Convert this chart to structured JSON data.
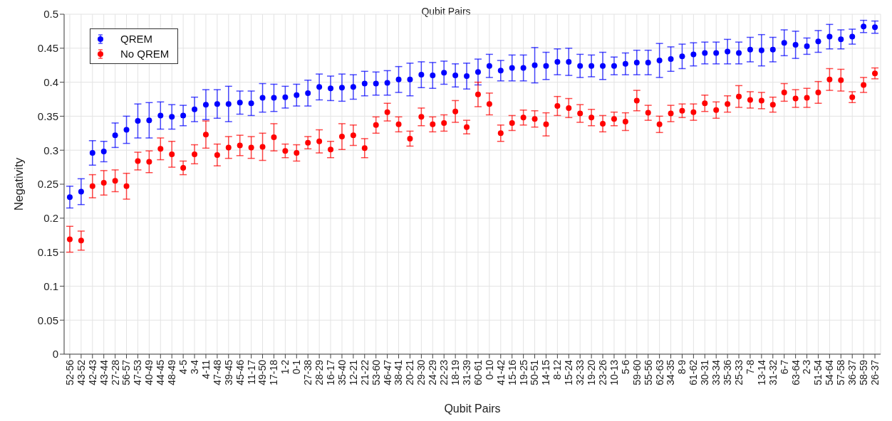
{
  "chart_data": {
    "type": "scatter",
    "title": "Qubit Pairs",
    "xlabel": "Qubit Pairs",
    "ylabel": "Negativity",
    "categories": [
      "52-56",
      "43-52",
      "42-43",
      "43-44",
      "27-28",
      "56-57",
      "47-53",
      "40-49",
      "44-45",
      "48-49",
      "4-5",
      "3-4",
      "4-11",
      "47-48",
      "39-45",
      "45-46",
      "11-17",
      "49-50",
      "17-18",
      "1-2",
      "0-1",
      "27-38",
      "28-29",
      "16-17",
      "35-40",
      "12-21",
      "21-22",
      "53-60",
      "46-47",
      "38-41",
      "20-21",
      "29-30",
      "24-29",
      "22-23",
      "18-19",
      "31-39",
      "60-61",
      "0-10",
      "41-42",
      "15-16",
      "19-25",
      "50-51",
      "14-15",
      "8-12",
      "15-24",
      "32-33",
      "19-20",
      "23-26",
      "10-13",
      "5-6",
      "59-60",
      "55-56",
      "62-63",
      "34-35",
      "8-9",
      "61-62",
      "30-31",
      "33-34",
      "35-36",
      "25-33",
      "7-8",
      "13-14",
      "31-32",
      "6-7",
      "63-64",
      "2-3",
      "51-54",
      "54-64",
      "57-58",
      "36-37",
      "58-59",
      "26-37"
    ],
    "series": [
      {
        "name": "QREM",
        "color": "#0000ff",
        "values": [
          0.231,
          0.239,
          0.296,
          0.298,
          0.322,
          0.33,
          0.343,
          0.344,
          0.351,
          0.349,
          0.351,
          0.36,
          0.367,
          0.368,
          0.368,
          0.37,
          0.369,
          0.377,
          0.377,
          0.378,
          0.381,
          0.384,
          0.393,
          0.391,
          0.392,
          0.393,
          0.398,
          0.398,
          0.399,
          0.404,
          0.404,
          0.411,
          0.41,
          0.414,
          0.41,
          0.409,
          0.415,
          0.424,
          0.417,
          0.421,
          0.421,
          0.425,
          0.424,
          0.43,
          0.43,
          0.424,
          0.424,
          0.424,
          0.424,
          0.427,
          0.429,
          0.429,
          0.432,
          0.434,
          0.438,
          0.441,
          0.443,
          0.443,
          0.445,
          0.443,
          0.448,
          0.447,
          0.448,
          0.458,
          0.455,
          0.453,
          0.46,
          0.467,
          0.463,
          0.467,
          0.482,
          0.481
        ],
        "errors": [
          0.016,
          0.019,
          0.018,
          0.015,
          0.018,
          0.02,
          0.025,
          0.026,
          0.02,
          0.018,
          0.015,
          0.018,
          0.022,
          0.021,
          0.026,
          0.017,
          0.018,
          0.021,
          0.02,
          0.016,
          0.016,
          0.019,
          0.019,
          0.018,
          0.02,
          0.018,
          0.018,
          0.017,
          0.018,
          0.019,
          0.024,
          0.019,
          0.019,
          0.017,
          0.017,
          0.019,
          0.019,
          0.017,
          0.015,
          0.019,
          0.019,
          0.026,
          0.02,
          0.019,
          0.02,
          0.017,
          0.016,
          0.02,
          0.013,
          0.016,
          0.018,
          0.018,
          0.025,
          0.018,
          0.018,
          0.017,
          0.016,
          0.016,
          0.018,
          0.016,
          0.018,
          0.023,
          0.018,
          0.019,
          0.02,
          0.012,
          0.016,
          0.018,
          0.014,
          0.011,
          0.009,
          0.009
        ]
      },
      {
        "name": "No QREM",
        "color": "#ff0000",
        "values": [
          0.169,
          0.167,
          0.247,
          0.252,
          0.255,
          0.247,
          0.284,
          0.283,
          0.302,
          0.294,
          0.274,
          0.294,
          0.323,
          0.293,
          0.304,
          0.307,
          0.304,
          0.305,
          0.319,
          0.299,
          0.296,
          0.311,
          0.313,
          0.301,
          0.32,
          0.322,
          0.303,
          0.337,
          0.356,
          0.338,
          0.317,
          0.349,
          0.338,
          0.34,
          0.357,
          0.334,
          0.382,
          0.368,
          0.325,
          0.34,
          0.348,
          0.346,
          0.338,
          0.365,
          0.362,
          0.354,
          0.348,
          0.339,
          0.346,
          0.342,
          0.373,
          0.355,
          0.338,
          0.354,
          0.358,
          0.356,
          0.369,
          0.359,
          0.368,
          0.379,
          0.374,
          0.373,
          0.367,
          0.385,
          0.376,
          0.377,
          0.385,
          0.404,
          0.403,
          0.378,
          0.396,
          0.413
        ],
        "errors": [
          0.019,
          0.014,
          0.017,
          0.018,
          0.016,
          0.019,
          0.013,
          0.016,
          0.016,
          0.019,
          0.01,
          0.014,
          0.02,
          0.016,
          0.016,
          0.015,
          0.016,
          0.02,
          0.02,
          0.01,
          0.012,
          0.009,
          0.017,
          0.012,
          0.019,
          0.015,
          0.014,
          0.012,
          0.013,
          0.011,
          0.011,
          0.013,
          0.011,
          0.012,
          0.016,
          0.01,
          0.018,
          0.016,
          0.012,
          0.011,
          0.011,
          0.012,
          0.017,
          0.014,
          0.014,
          0.013,
          0.012,
          0.012,
          0.01,
          0.013,
          0.015,
          0.011,
          0.012,
          0.012,
          0.01,
          0.012,
          0.012,
          0.012,
          0.012,
          0.016,
          0.012,
          0.012,
          0.011,
          0.013,
          0.013,
          0.014,
          0.016,
          0.016,
          0.016,
          0.008,
          0.011,
          0.008
        ]
      }
    ],
    "ylim": [
      0,
      0.5
    ],
    "yticks": [
      0,
      0.05,
      0.1,
      0.15,
      0.2,
      0.25,
      0.3,
      0.35,
      0.4,
      0.45,
      0.5
    ],
    "grid": true,
    "legend": "top left",
    "marker": "circle"
  }
}
